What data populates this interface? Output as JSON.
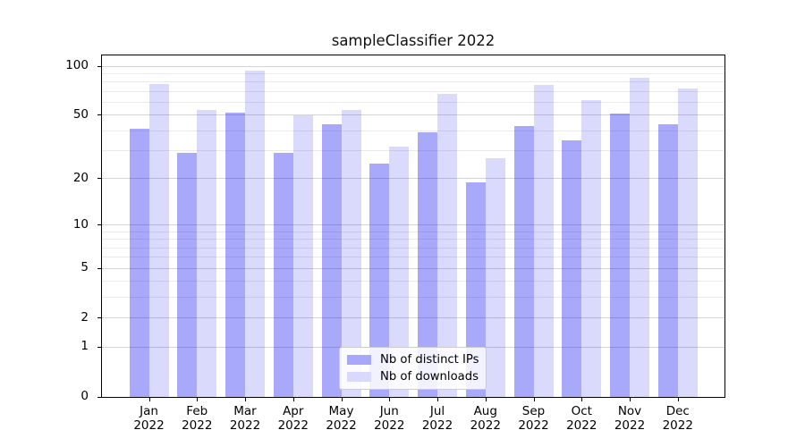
{
  "chart_data": {
    "type": "bar",
    "title": "sampleClassifier 2022",
    "categories": [
      "Jan",
      "Feb",
      "Mar",
      "Apr",
      "May",
      "Jun",
      "Jul",
      "Aug",
      "Sep",
      "Oct",
      "Nov",
      "Dec"
    ],
    "category_year": "2022",
    "series": [
      {
        "name": "Nb of distinct IPs",
        "color": "#a8a8fa",
        "values": [
          41,
          29,
          52,
          29,
          44,
          25,
          39,
          19,
          43,
          35,
          51,
          44
        ]
      },
      {
        "name": "Nb of downloads",
        "color": "#d9d9fd",
        "values": [
          78,
          54,
          94,
          50,
          54,
          32,
          68,
          27,
          77,
          62,
          85,
          73
        ]
      }
    ],
    "xlabel": "",
    "ylabel": "",
    "y_axis": {
      "scale": "log1p",
      "tick_labels": [
        "100",
        "50",
        "20",
        "10",
        "5",
        "2",
        "1",
        "0"
      ],
      "tick_values": [
        100,
        50,
        20,
        10,
        5,
        2,
        1,
        0
      ],
      "minor_gridline_values": [
        3,
        4,
        6,
        7,
        8,
        9,
        30,
        40,
        60,
        70,
        80,
        90
      ],
      "ylim": [
        0,
        117
      ]
    },
    "grid": true,
    "legend_position": "lower center",
    "colors": {
      "major_grid": "#d4d4d4",
      "minor_grid": "#eaeaea",
      "axis": "#000000",
      "background": "#ffffff"
    }
  }
}
